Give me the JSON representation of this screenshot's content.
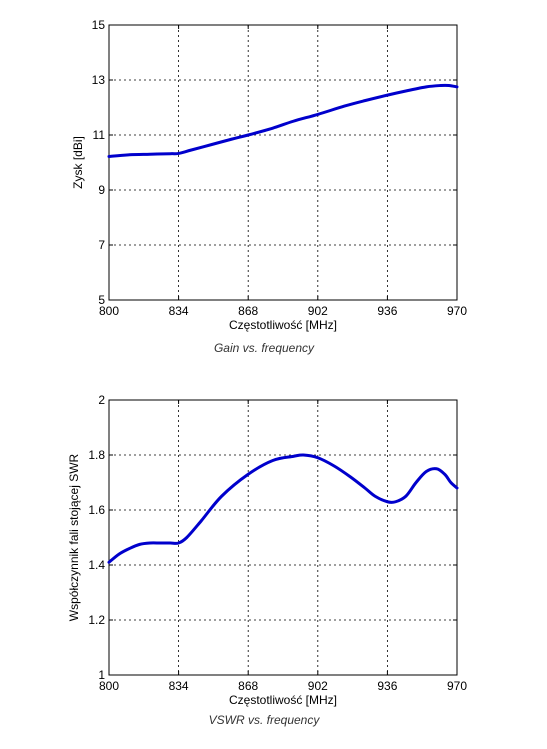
{
  "chart_data": [
    {
      "type": "line",
      "xlabel": "Częstotliwość [MHz]",
      "ylabel": "Zysk [dBi]",
      "caption": "Gain vs. frequency",
      "xlim": [
        800,
        970
      ],
      "ylim": [
        5,
        15
      ],
      "xticks": [
        800,
        834,
        868,
        902,
        936,
        970
      ],
      "yticks": [
        5,
        7,
        9,
        11,
        13,
        15
      ],
      "grid": true,
      "line_color": "#0000CC",
      "series": [
        {
          "x": [
            800,
            810,
            820,
            830,
            834,
            840,
            850,
            860,
            868,
            880,
            890,
            902,
            915,
            925,
            936,
            945,
            955,
            962,
            966,
            970
          ],
          "y": [
            10.22,
            10.28,
            10.3,
            10.32,
            10.33,
            10.45,
            10.65,
            10.85,
            11.0,
            11.25,
            11.5,
            11.75,
            12.05,
            12.25,
            12.45,
            12.6,
            12.75,
            12.8,
            12.8,
            12.75
          ]
        }
      ]
    },
    {
      "type": "line",
      "xlabel": "Częstotliwość [MHz]",
      "ylabel": "Współczynnik fali stojącej SWR",
      "caption": "VSWR vs. frequency",
      "xlim": [
        800,
        970
      ],
      "ylim": [
        1,
        2
      ],
      "xticks": [
        800,
        834,
        868,
        902,
        936,
        970
      ],
      "yticks": [
        1,
        1.2,
        1.4,
        1.6,
        1.8,
        2
      ],
      "grid": true,
      "line_color": "#0000CC",
      "series": [
        {
          "x": [
            800,
            805,
            810,
            815,
            820,
            825,
            830,
            834,
            838,
            845,
            855,
            868,
            880,
            890,
            895,
            902,
            910,
            918,
            925,
            930,
            936,
            940,
            945,
            950,
            955,
            960,
            964,
            967,
            970
          ],
          "y": [
            1.41,
            1.44,
            1.46,
            1.475,
            1.48,
            1.48,
            1.48,
            1.48,
            1.5,
            1.56,
            1.65,
            1.73,
            1.78,
            1.795,
            1.8,
            1.79,
            1.76,
            1.72,
            1.68,
            1.65,
            1.63,
            1.63,
            1.65,
            1.7,
            1.74,
            1.75,
            1.73,
            1.7,
            1.68
          ]
        }
      ]
    }
  ]
}
